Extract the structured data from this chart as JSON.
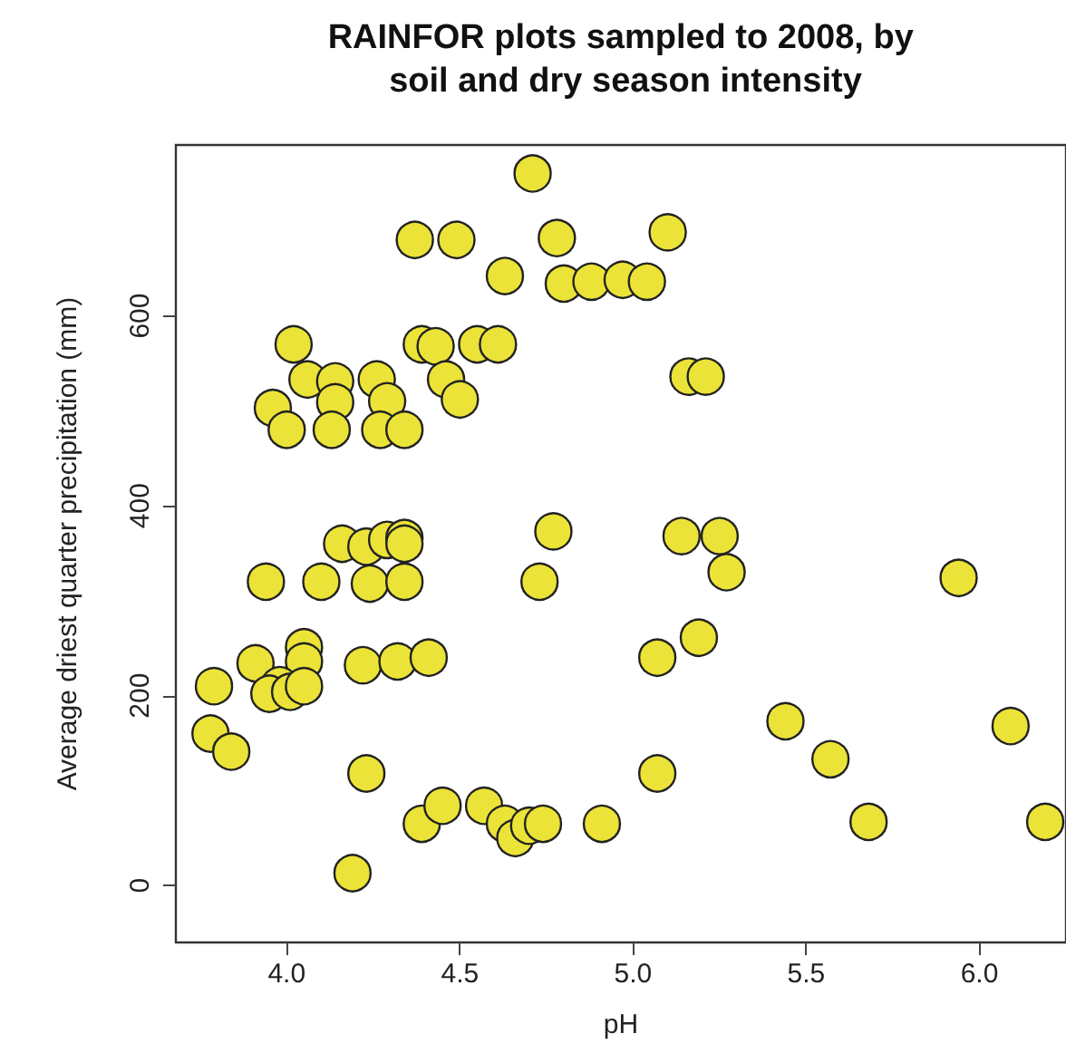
{
  "chart_data": {
    "type": "scatter",
    "title": "RAINFOR plots sampled to 2008, by soil and dry season intensity",
    "xlabel": "pH",
    "ylabel": "Average driest quarter precipitation (mm)",
    "xlim": [
      3.68,
      6.25
    ],
    "ylim": [
      -60,
      780
    ],
    "xticks": [
      {
        "value": 4,
        "label": "4.0"
      },
      4.5,
      {
        "value": 5,
        "label": "5.0"
      },
      5.5,
      {
        "value": 6,
        "label": "6.0"
      }
    ],
    "yticks": [
      0,
      200,
      400,
      600
    ],
    "grid": false,
    "marker": "circle",
    "series": [
      {
        "color": "#ebe337",
        "x": [
          4.71,
          4.37,
          4.49,
          4.78,
          4.63,
          4.8,
          4.88,
          4.97,
          5.04,
          5.1,
          4.02,
          4.39,
          4.43,
          4.55,
          4.61,
          4.06,
          4.14,
          4.26,
          4.46,
          3.96,
          4.14,
          4.29,
          4.5,
          4.0,
          4.13,
          4.27,
          4.34,
          5.16,
          5.21,
          5.14,
          5.25,
          5.27,
          5.19,
          5.07,
          5.94,
          5.44,
          5.57,
          5.07,
          5.68,
          6.09,
          6.19,
          4.91,
          4.16,
          4.23,
          4.29,
          4.34,
          4.34,
          3.94,
          4.1,
          4.24,
          4.34,
          4.77,
          4.73,
          3.79,
          3.91,
          4.05,
          4.05,
          3.98,
          3.95,
          4.01,
          4.05,
          4.22,
          4.32,
          4.41,
          3.78,
          3.84,
          4.23,
          4.19,
          4.39,
          4.45,
          4.57,
          4.63,
          4.66,
          4.7,
          4.74
        ],
        "values": [
          750,
          680,
          680,
          682,
          642,
          634,
          636,
          638,
          636,
          688,
          570,
          570,
          568,
          570,
          570,
          533,
          531,
          533,
          533,
          503,
          509,
          510,
          512,
          480,
          480,
          480,
          480,
          536,
          536,
          368,
          368,
          330,
          261,
          240,
          324,
          173,
          133,
          118,
          67,
          168,
          67,
          65,
          360,
          357,
          364,
          366,
          360,
          320,
          320,
          318,
          320,
          373,
          320,
          210,
          234,
          251,
          236,
          211,
          202,
          204,
          210,
          232,
          236,
          240,
          160,
          141,
          118,
          13,
          65,
          84,
          84,
          65,
          50,
          63,
          65
        ]
      }
    ]
  }
}
